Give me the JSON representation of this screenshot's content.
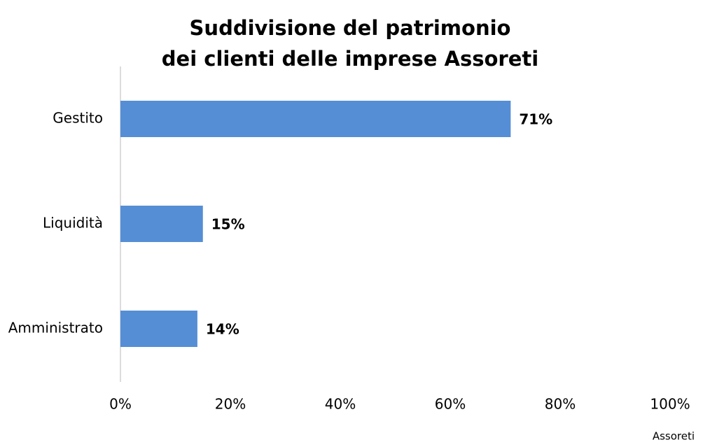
{
  "chart_data": {
    "type": "hbar",
    "title": [
      "Suddivisione del patrimonio",
      "dei clienti delle imprese Assoreti"
    ],
    "categories": [
      "Gestito",
      "Liquidità",
      "Amministrato"
    ],
    "values": [
      71,
      15,
      14
    ],
    "value_labels": [
      "71%",
      "15%",
      "14%"
    ],
    "color": "#558ed5",
    "xlim": [
      0,
      100
    ],
    "xticks": [
      {
        "value": 0,
        "label": "0%"
      },
      {
        "value": 20,
        "label": "20%"
      },
      {
        "value": 40,
        "label": "40%"
      },
      {
        "value": 60,
        "label": "60%"
      },
      {
        "value": 80,
        "label": "80%"
      },
      {
        "value": 100,
        "label": "100%"
      }
    ],
    "grid": false,
    "source": "Assoreti"
  }
}
